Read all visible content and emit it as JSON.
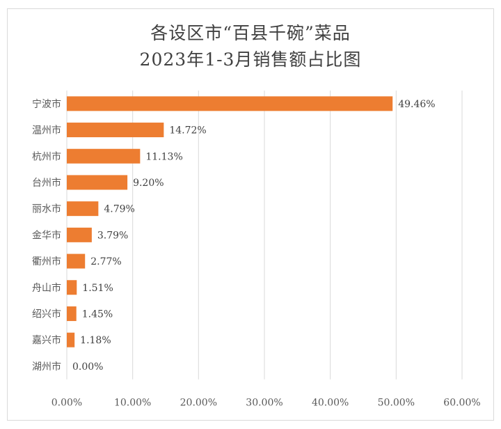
{
  "chart_data": {
    "type": "bar",
    "orientation": "horizontal",
    "title": "各设区市“百县千碗”菜品",
    "subtitle": "2023年1-3月销售额占比图",
    "categories": [
      "宁波市",
      "温州市",
      "杭州市",
      "台州市",
      "丽水市",
      "金华市",
      "衢州市",
      "舟山市",
      "绍兴市",
      "嘉兴市",
      "湖州市"
    ],
    "values": [
      49.46,
      14.72,
      11.13,
      9.2,
      4.79,
      3.79,
      2.77,
      1.51,
      1.45,
      1.18,
      0.0
    ],
    "data_labels": [
      "49.46%",
      "14.72%",
      "11.13%",
      "9.20%",
      "4.79%",
      "3.79%",
      "2.77%",
      "1.51%",
      "1.45%",
      "1.18%",
      "0.00%"
    ],
    "xlim": [
      0,
      60
    ],
    "x_ticks": [
      0,
      10,
      20,
      30,
      40,
      50,
      60
    ],
    "x_tick_labels": [
      "0.00%",
      "10.00%",
      "20.00%",
      "30.00%",
      "40.00%",
      "50.00%",
      "60.00%"
    ],
    "xlabel": "",
    "ylabel": "",
    "grid": true,
    "legend": "none",
    "bar_color": "#ed7d31",
    "grid_color": "#d9d9d9"
  }
}
